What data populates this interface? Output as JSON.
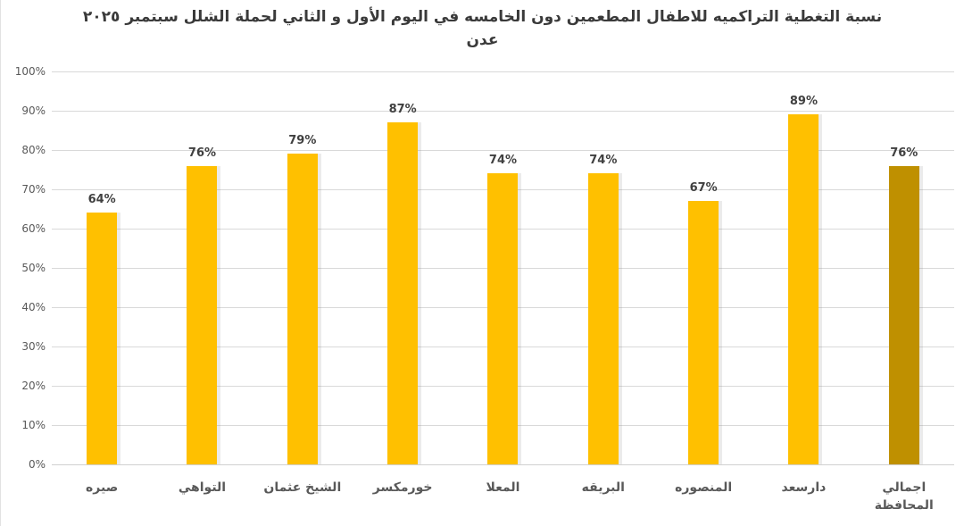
{
  "title": {
    "line1": "نسبة التغطية التراكميه للاطفال المطعمين دون الخامسه في اليوم الأول و الثاني لحملة الشلل سبتمبر ٢٠٢٥",
    "line2": "عدن"
  },
  "chart_data": {
    "type": "bar",
    "title": "نسبة التغطية التراكميه للاطفال المطعمين دون الخامسه في اليوم الأول و الثاني لحملة الشلل سبتمبر ٢٠٢٥ عدن",
    "categories": [
      "صيره",
      "التواهي",
      "الشيخ عثمان",
      "خورمكسر",
      "المعلا",
      "البريقه",
      "المنصوره",
      "دارسعد",
      "اجمالي المحافظة"
    ],
    "values": [
      64,
      76,
      79,
      87,
      74,
      74,
      67,
      89,
      76
    ],
    "data_labels": [
      "64%",
      "76%",
      "79%",
      "87%",
      "74%",
      "74%",
      "67%",
      "89%",
      "76%"
    ],
    "ytick_labels": [
      "0%",
      "10%",
      "20%",
      "30%",
      "40%",
      "50%",
      "60%",
      "70%",
      "80%",
      "90%",
      "100%"
    ],
    "ylim": [
      0,
      100
    ],
    "xlabel": "",
    "ylabel": "",
    "grid": true,
    "legend_position": "none",
    "bar_color": "#FFC000",
    "total_bar_color": "#BF9000",
    "gridline_color": "#d9d9d9",
    "label_color": "#404040",
    "axis_text_color": "#595959"
  }
}
